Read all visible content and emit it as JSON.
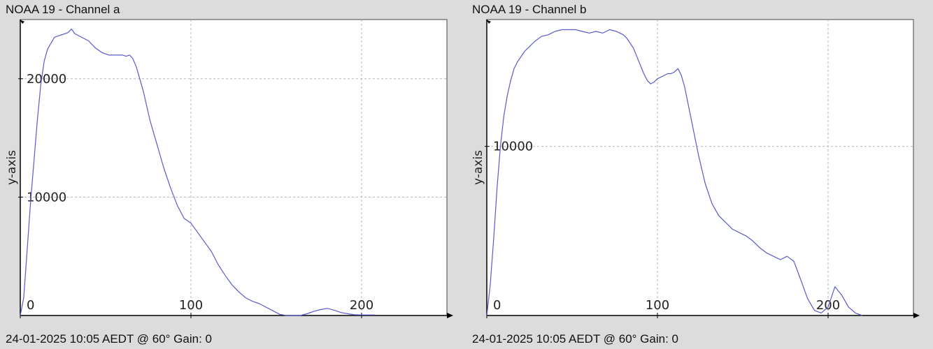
{
  "chart_data": [
    {
      "type": "line",
      "title": "NOAA 19 - Channel a",
      "ylabel": "y-axis",
      "xlabel": "",
      "footer": "24-01-2025 10:05 AEDT @ 60° Gain: 0",
      "xlim": [
        0,
        250
      ],
      "ylim": [
        0,
        25000
      ],
      "xticks": [
        0,
        100,
        200
      ],
      "yticks": [
        10000,
        20000
      ],
      "grid": true,
      "line_color": "#5a5acd",
      "series": [
        {
          "x": [
            0,
            2,
            4,
            6,
            8,
            10,
            12,
            14,
            16,
            18,
            20,
            22,
            24,
            26,
            28,
            30,
            32,
            36,
            40,
            44,
            48,
            52,
            56,
            60,
            62,
            64,
            66,
            68,
            70,
            72,
            76,
            80,
            84,
            88,
            92,
            96,
            100,
            104,
            108,
            112,
            116,
            120,
            124,
            128,
            132,
            136,
            140,
            144,
            148,
            152,
            156,
            160,
            164,
            168,
            172,
            176,
            180,
            184,
            188,
            192,
            196,
            200,
            204,
            208
          ],
          "y": [
            0,
            1500,
            5500,
            9500,
            13000,
            16500,
            19500,
            21500,
            22500,
            23000,
            23500,
            23600,
            23700,
            23800,
            23900,
            24200,
            23800,
            23500,
            23200,
            22600,
            22200,
            22000,
            22000,
            22000,
            21900,
            22000,
            21700,
            21000,
            20000,
            19000,
            16500,
            14500,
            12500,
            10800,
            9300,
            8200,
            7800,
            7000,
            6200,
            5400,
            4300,
            3400,
            2600,
            2000,
            1500,
            1200,
            1000,
            700,
            400,
            100,
            0,
            0,
            0,
            150,
            350,
            500,
            600,
            450,
            250,
            150,
            60,
            50,
            50,
            50
          ]
        }
      ]
    },
    {
      "type": "line",
      "title": "NOAA 19 - Channel b",
      "ylabel": "y-axis",
      "xlabel": "",
      "footer": "24-01-2025 10:05 AEDT @ 60° Gain: 0",
      "xlim": [
        0,
        250
      ],
      "ylim": [
        0,
        17500
      ],
      "xticks": [
        0,
        100,
        200
      ],
      "yticks": [
        10000
      ],
      "grid": true,
      "line_color": "#5a5acd",
      "series": [
        {
          "x": [
            0,
            2,
            4,
            6,
            8,
            10,
            12,
            14,
            16,
            18,
            20,
            22,
            24,
            28,
            32,
            36,
            40,
            44,
            48,
            52,
            56,
            60,
            64,
            68,
            72,
            76,
            78,
            80,
            82,
            84,
            86,
            88,
            90,
            92,
            94,
            96,
            98,
            100,
            102,
            104,
            106,
            108,
            110,
            112,
            114,
            116,
            118,
            120,
            124,
            128,
            132,
            136,
            140,
            144,
            148,
            152,
            156,
            160,
            164,
            168,
            172,
            176,
            180,
            184,
            188,
            192,
            196,
            200,
            204,
            208,
            212,
            216,
            220
          ],
          "y": [
            0,
            1800,
            4500,
            7500,
            10000,
            11800,
            13000,
            13900,
            14600,
            15000,
            15300,
            15600,
            15800,
            16200,
            16500,
            16600,
            16800,
            16900,
            16900,
            16900,
            16800,
            16700,
            16800,
            16700,
            16900,
            16800,
            16700,
            16600,
            16400,
            16100,
            15800,
            15300,
            14800,
            14300,
            13900,
            13700,
            13800,
            14000,
            14100,
            14200,
            14300,
            14300,
            14400,
            14600,
            14200,
            13500,
            12500,
            11500,
            9500,
            7800,
            6600,
            5900,
            5500,
            5100,
            4900,
            4700,
            4400,
            4000,
            3700,
            3500,
            3300,
            3500,
            3200,
            2100,
            1000,
            300,
            150,
            500,
            1700,
            1200,
            500,
            150,
            0
          ]
        }
      ]
    }
  ]
}
